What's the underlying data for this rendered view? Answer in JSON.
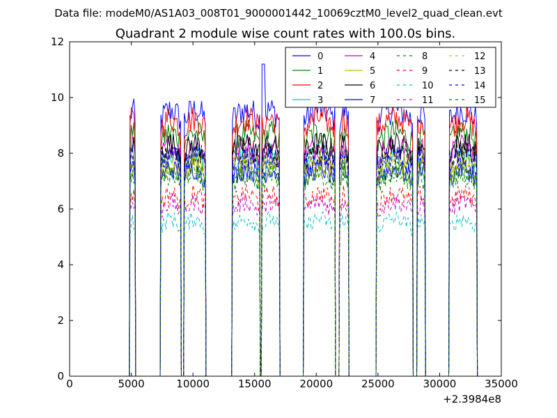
{
  "suptitle": "Data file: modeM0/AS1A03_008T01_9000001442_10069cztM0_level2_quad_clean.evt",
  "chart_data": {
    "type": "line",
    "title": "Quadrant 2 module wise count rates with 100.0s bins.",
    "xlabel": "",
    "ylabel": "",
    "x_offset_label": "+2.3984e8",
    "xlim": [
      0,
      35000
    ],
    "ylim": [
      0,
      12
    ],
    "xticks": [
      0,
      5000,
      10000,
      15000,
      20000,
      25000,
      30000,
      35000
    ],
    "yticks": [
      0,
      2,
      4,
      6,
      8,
      10,
      12
    ],
    "grid": false,
    "legend_position": "top-right",
    "legend_columns": 4,
    "segments_note": "Good-time-interval segments: [4900,5300],[7400,9000],[9300,11000],[13200,15400],[15600,17000],[19000,21500],[21900,22600],[24900,27800],[28200,28800],[30800,33000]",
    "segments": [
      [
        4900,
        5300
      ],
      [
        7400,
        9000
      ],
      [
        9300,
        11000
      ],
      [
        13200,
        15400
      ],
      [
        15600,
        17000
      ],
      [
        19000,
        21500
      ],
      [
        21900,
        22600
      ],
      [
        24900,
        27800
      ],
      [
        28200,
        28800
      ],
      [
        30800,
        33000
      ]
    ],
    "series": [
      {
        "name": "0",
        "color": "#0000ff",
        "dashed": false,
        "level": 9.2
      },
      {
        "name": "1",
        "color": "#008000",
        "dashed": false,
        "level": 8.4
      },
      {
        "name": "2",
        "color": "#ff0000",
        "dashed": false,
        "level": 8.9
      },
      {
        "name": "3",
        "color": "#00bfbf",
        "dashed": false,
        "level": 7.6
      },
      {
        "name": "4",
        "color": "#bf00bf",
        "dashed": false,
        "level": 7.9
      },
      {
        "name": "5",
        "color": "#bfbf00",
        "dashed": false,
        "level": 7.4
      },
      {
        "name": "6",
        "color": "#000000",
        "dashed": false,
        "level": 8.0
      },
      {
        "name": "7",
        "color": "#0000ff",
        "dashed": false,
        "level": 7.1
      },
      {
        "name": "8",
        "color": "#008000",
        "dashed": true,
        "level": 6.9
      },
      {
        "name": "9",
        "color": "#ff0000",
        "dashed": true,
        "level": 6.2
      },
      {
        "name": "10",
        "color": "#00bfbf",
        "dashed": true,
        "level": 5.3
      },
      {
        "name": "11",
        "color": "#bf00bf",
        "dashed": true,
        "level": 5.9
      },
      {
        "name": "12",
        "color": "#bfbf00",
        "dashed": true,
        "level": 7.2
      },
      {
        "name": "13",
        "color": "#000000",
        "dashed": true,
        "level": 7.7
      },
      {
        "name": "14",
        "color": "#0000ff",
        "dashed": true,
        "level": 7.5
      },
      {
        "name": "15",
        "color": "#008000",
        "dashed": true,
        "level": 7.0
      }
    ]
  }
}
